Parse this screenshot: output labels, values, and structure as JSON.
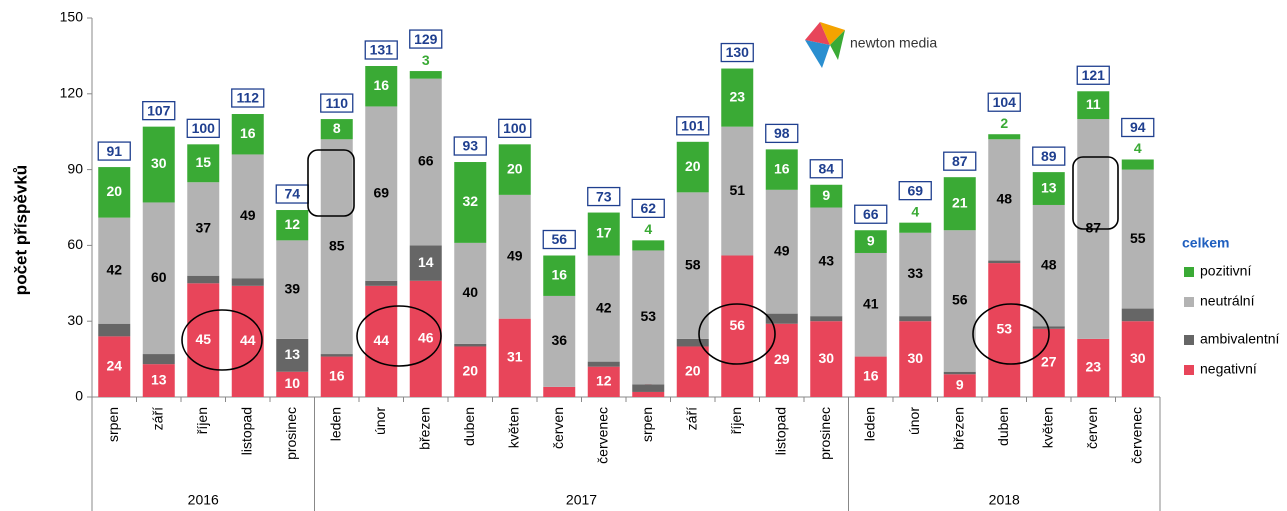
{
  "chart_data": {
    "type": "bar",
    "stacked": true,
    "ylabel": "počet příspěvků",
    "logo": "newton media",
    "legend_title": "celkem",
    "ylim": [
      0,
      150
    ],
    "yticks": [
      0,
      30,
      60,
      90,
      120,
      150
    ],
    "groups": [
      {
        "name": "2016",
        "categories": [
          "srpen",
          "září",
          "říjen",
          "listopad",
          "prosinec"
        ]
      },
      {
        "name": "2017",
        "categories": [
          "leden",
          "únor",
          "březen",
          "duben",
          "květen",
          "červen",
          "červenec",
          "srpen",
          "září",
          "říjen",
          "listopad",
          "prosinec"
        ]
      },
      {
        "name": "2018",
        "categories": [
          "leden",
          "únor",
          "březen",
          "duben",
          "květen",
          "červen",
          "červenec"
        ]
      }
    ],
    "series": [
      {
        "name": "negativní",
        "color": "#e8455a",
        "values": [
          24,
          13,
          45,
          44,
          10,
          16,
          44,
          46,
          20,
          31,
          4,
          12,
          2,
          20,
          56,
          29,
          30,
          16,
          30,
          9,
          53,
          27,
          23,
          30
        ]
      },
      {
        "name": "ambivalentní",
        "color": "#666666",
        "values": [
          5,
          4,
          3,
          3,
          13,
          1,
          2,
          14,
          1,
          0,
          0,
          2,
          3,
          3,
          0,
          4,
          2,
          0,
          2,
          1,
          1,
          1,
          0,
          5
        ]
      },
      {
        "name": "neutrální",
        "color": "#b3b3b3",
        "values": [
          42,
          60,
          37,
          49,
          39,
          85,
          69,
          66,
          40,
          49,
          36,
          42,
          53,
          58,
          51,
          49,
          43,
          41,
          33,
          56,
          48,
          48,
          87,
          55
        ]
      },
      {
        "name": "pozitivní",
        "color": "#3aaa35",
        "values": [
          20,
          30,
          15,
          16,
          12,
          8,
          16,
          3,
          32,
          20,
          16,
          17,
          4,
          20,
          23,
          16,
          9,
          9,
          4,
          21,
          2,
          13,
          11,
          4
        ]
      }
    ],
    "totals": [
      91,
      107,
      100,
      112,
      74,
      110,
      131,
      129,
      93,
      100,
      56,
      73,
      62,
      101,
      130,
      98,
      84,
      66,
      69,
      87,
      104,
      89,
      121,
      94
    ]
  }
}
